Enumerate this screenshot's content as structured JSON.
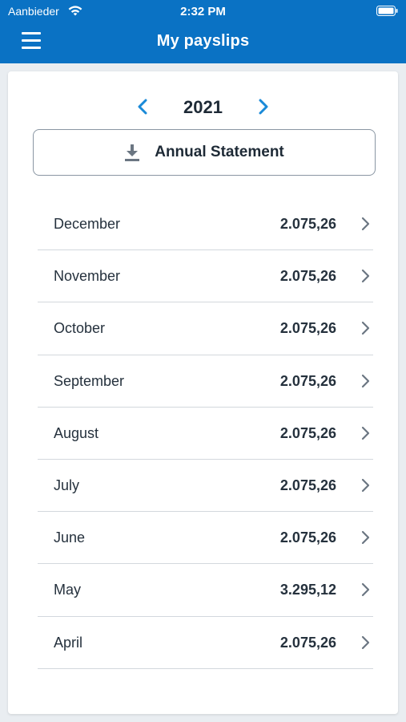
{
  "status_bar": {
    "carrier": "Aanbieder",
    "time": "2:32 PM",
    "icons": [
      "wifi-icon",
      "battery-icon"
    ]
  },
  "header": {
    "title": "My payslips",
    "menu_icon": "hamburger-menu-icon",
    "background_color": "#0a72c4"
  },
  "year_selector": {
    "year": "2021",
    "prev_icon": "chevron-left-icon",
    "next_icon": "chevron-right-icon",
    "accent_color": "#1a8ad8"
  },
  "annual_statement": {
    "label": "Annual Statement",
    "icon": "download-icon"
  },
  "payslips": [
    {
      "month": "December",
      "amount": "2.075,26"
    },
    {
      "month": "November",
      "amount": "2.075,26"
    },
    {
      "month": "October",
      "amount": "2.075,26"
    },
    {
      "month": "September",
      "amount": "2.075,26"
    },
    {
      "month": "August",
      "amount": "2.075,26"
    },
    {
      "month": "July",
      "amount": "2.075,26"
    },
    {
      "month": "June",
      "amount": "2.075,26"
    },
    {
      "month": "May",
      "amount": "3.295,12"
    },
    {
      "month": "April",
      "amount": "2.075,26"
    }
  ]
}
